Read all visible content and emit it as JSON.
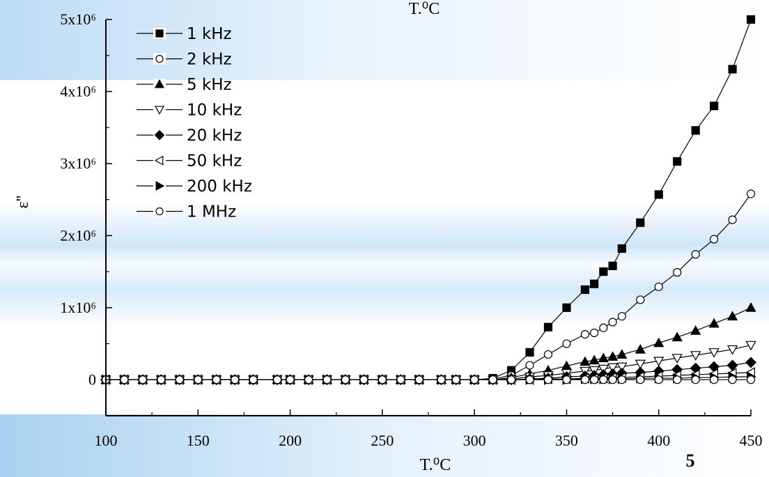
{
  "slide_number": "5",
  "top_caption": "T.⁰C",
  "chart_data": {
    "type": "line",
    "xlabel": "T.⁰C",
    "ylabel": "ε''",
    "xlim": [
      100,
      450
    ],
    "ylim": [
      -500000,
      5000000
    ],
    "x_ticks": [
      100,
      150,
      200,
      250,
      300,
      350,
      400,
      450
    ],
    "x_tick_labels": [
      "100",
      "150",
      "200",
      "250",
      "300",
      "350",
      "400",
      "450"
    ],
    "y_ticks": [
      0,
      1000000,
      2000000,
      3000000,
      4000000,
      5000000
    ],
    "y_tick_labels": [
      "0",
      "1x10⁶",
      "2x10⁶",
      "3x10⁶",
      "4x10⁶",
      "5x10⁶"
    ],
    "grid": false,
    "legend_position": "top-left",
    "x": [
      100,
      110,
      120,
      130,
      140,
      150,
      160,
      170,
      180,
      193,
      200,
      210,
      220,
      230,
      240,
      250,
      260,
      270,
      282,
      290,
      300,
      310,
      320,
      330,
      340,
      350,
      360,
      365,
      370,
      375,
      380,
      390,
      400,
      410,
      420,
      430,
      440,
      450
    ],
    "series": [
      {
        "name": "1 kHz",
        "marker": "square-filled",
        "values": [
          0,
          0,
          0,
          0,
          0,
          0,
          0,
          0,
          0,
          0,
          0,
          0,
          0,
          0,
          0,
          0,
          0,
          0,
          0,
          0,
          0,
          20000,
          130000,
          380000,
          730000,
          1000000,
          1250000,
          1330000,
          1500000,
          1580000,
          1820000,
          2180000,
          2570000,
          3030000,
          3460000,
          3800000,
          4310000,
          5000000
        ]
      },
      {
        "name": "2 kHz",
        "marker": "circle-open",
        "values": [
          0,
          0,
          0,
          0,
          0,
          0,
          0,
          0,
          0,
          0,
          0,
          0,
          0,
          0,
          0,
          0,
          0,
          0,
          0,
          0,
          0,
          10000,
          60000,
          200000,
          350000,
          500000,
          630000,
          650000,
          720000,
          800000,
          880000,
          1110000,
          1290000,
          1490000,
          1740000,
          1950000,
          2220000,
          2580000
        ]
      },
      {
        "name": "5 kHz",
        "marker": "triangle-up-filled",
        "values": [
          0,
          0,
          0,
          0,
          0,
          0,
          0,
          0,
          0,
          0,
          0,
          0,
          0,
          0,
          0,
          0,
          0,
          0,
          0,
          0,
          0,
          0,
          30000,
          80000,
          130000,
          190000,
          250000,
          270000,
          300000,
          320000,
          350000,
          420000,
          510000,
          590000,
          680000,
          780000,
          880000,
          1000000
        ]
      },
      {
        "name": "10 kHz",
        "marker": "triangle-down-open",
        "values": [
          0,
          0,
          0,
          0,
          0,
          0,
          0,
          0,
          0,
          0,
          0,
          0,
          0,
          0,
          0,
          0,
          0,
          0,
          0,
          0,
          0,
          0,
          10000,
          40000,
          60000,
          90000,
          120000,
          130000,
          150000,
          170000,
          180000,
          220000,
          260000,
          300000,
          340000,
          380000,
          420000,
          480000
        ]
      },
      {
        "name": "20 kHz",
        "marker": "diamond-filled",
        "values": [
          0,
          0,
          0,
          0,
          0,
          0,
          0,
          0,
          0,
          0,
          0,
          0,
          0,
          0,
          0,
          0,
          0,
          0,
          0,
          0,
          0,
          0,
          0,
          10000,
          20000,
          40000,
          50000,
          60000,
          70000,
          80000,
          90000,
          100000,
          120000,
          140000,
          160000,
          180000,
          200000,
          240000
        ]
      },
      {
        "name": "50 kHz",
        "marker": "triangle-left-open",
        "values": [
          0,
          0,
          0,
          0,
          0,
          0,
          0,
          0,
          0,
          0,
          0,
          0,
          0,
          0,
          0,
          0,
          0,
          0,
          0,
          0,
          0,
          0,
          0,
          0,
          10000,
          10000,
          20000,
          20000,
          20000,
          30000,
          30000,
          40000,
          50000,
          60000,
          70000,
          80000,
          90000,
          100000
        ]
      },
      {
        "name": "200 kHz",
        "marker": "triangle-right-filled",
        "values": [
          0,
          0,
          0,
          0,
          0,
          0,
          0,
          0,
          0,
          0,
          0,
          0,
          0,
          0,
          0,
          0,
          0,
          0,
          0,
          0,
          0,
          0,
          0,
          0,
          0,
          0,
          10000,
          10000,
          10000,
          10000,
          10000,
          20000,
          20000,
          20000,
          30000,
          30000,
          40000,
          40000
        ]
      },
      {
        "name": "1 MHz",
        "marker": "circle-open",
        "values": [
          0,
          0,
          0,
          0,
          0,
          0,
          0,
          0,
          0,
          0,
          0,
          0,
          0,
          0,
          0,
          0,
          0,
          0,
          0,
          0,
          0,
          0,
          0,
          0,
          0,
          0,
          0,
          0,
          0,
          0,
          0,
          0,
          0,
          0,
          0,
          0,
          0,
          0
        ]
      }
    ]
  }
}
